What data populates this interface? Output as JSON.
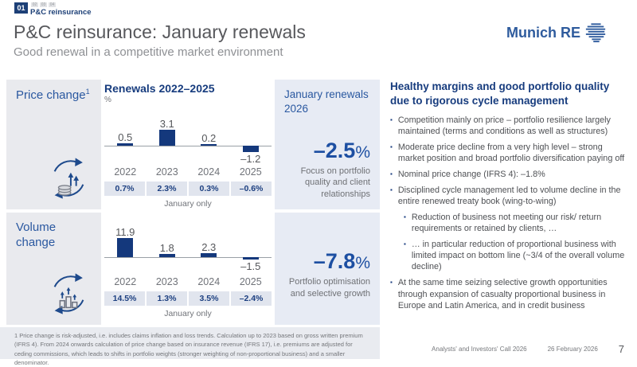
{
  "header": {
    "section_number": "01",
    "section_label": "P&C reinsurance",
    "mini_tabs": [
      "02",
      "03",
      "04"
    ],
    "title": "P&C reinsurance: January renewals",
    "subtitle": "Good renewal in a competitive market environment",
    "logo_text": "Munich RE"
  },
  "colors": {
    "brand_navy": "#14387c",
    "accent_blue": "#1d4fa2",
    "label_blue": "#2a58a0",
    "panel_gray": "#e9eaee",
    "panel_blue": "#e7ebf4",
    "strip_gray": "#e1e5ee"
  },
  "rows": [
    {
      "label": "Price change",
      "label_sup": "1",
      "highlight_value": "–2.5",
      "highlight_unit": "%",
      "highlight_caption": "Focus on portfolio quality and client relationships"
    },
    {
      "label": "Volume change",
      "highlight_value": "–7.8",
      "highlight_unit": "%",
      "highlight_caption": "Portfolio optimisation and selective growth"
    }
  ],
  "middle_heading": "January renewals 2026",
  "chart_data": [
    {
      "type": "bar",
      "title": "Renewals 2022–2025",
      "unit": "%",
      "categories": [
        "2022",
        "2023",
        "2024",
        "2025"
      ],
      "values": [
        0.5,
        3.1,
        0.2,
        -1.2
      ],
      "bar_labels": [
        "0.5",
        "3.1",
        "0.2",
        "–1.2"
      ],
      "table_row": [
        "0.7%",
        "2.3%",
        "0.3%",
        "–0.6%"
      ],
      "footnote": "January only",
      "ylim": [
        -2,
        4
      ],
      "grid": false,
      "legend": "none"
    },
    {
      "type": "bar",
      "title": "",
      "unit": "%",
      "categories": [
        "2022",
        "2023",
        "2024",
        "2025"
      ],
      "values": [
        11.9,
        1.8,
        2.3,
        -1.5
      ],
      "bar_labels": [
        "11.9",
        "1.8",
        "2.3",
        "–1.5"
      ],
      "table_row": [
        "14.5%",
        "1.3%",
        "3.5%",
        "–2.4%"
      ],
      "footnote": "January only",
      "ylim": [
        -3,
        13
      ],
      "grid": false,
      "legend": "none"
    }
  ],
  "right_column": {
    "heading": "Healthy margins and good portfolio quality due to rigorous cycle management",
    "bullets": [
      {
        "level": 1,
        "text": "Competition mainly on price – portfolio resilience largely maintained (terms and conditions as well as structures)"
      },
      {
        "level": 1,
        "text": "Moderate price decline from a very high level – strong market position and broad portfolio diversification paying off"
      },
      {
        "level": 1,
        "text": "Nominal price change (IFRS 4): –1.8%"
      },
      {
        "level": 1,
        "text": "Disciplined cycle management led to volume decline in the entire renewed treaty book (wing-to-wing)"
      },
      {
        "level": 2,
        "text": "Reduction of business not meeting our risk/ return requirements or retained by clients, …"
      },
      {
        "level": 2,
        "text": "… in particular reduction of proportional business with limited impact on bottom line (~3/4 of the overall volume decline)"
      },
      {
        "level": 1,
        "text": "At the same time seizing selective growth opportunities through expansion of casualty proportional business in Europe and Latin America, and in credit business"
      }
    ]
  },
  "footnote": "1 Price change is risk-adjusted, i.e. includes claims inflation and loss trends. Calculation up to 2023 based on gross written premium (IFRS 4). From 2024 onwards calculation of price change based on insurance revenue (IFRS 17), i.e. premiums are adjusted for ceding commissions, which leads to shifts in portfolio weights (stronger weighting of non-proportional business) and a smaller denominator.",
  "footer": {
    "event": "Analysts' and Investors' Call 2026",
    "date": "26 February 2026",
    "page": "7"
  }
}
